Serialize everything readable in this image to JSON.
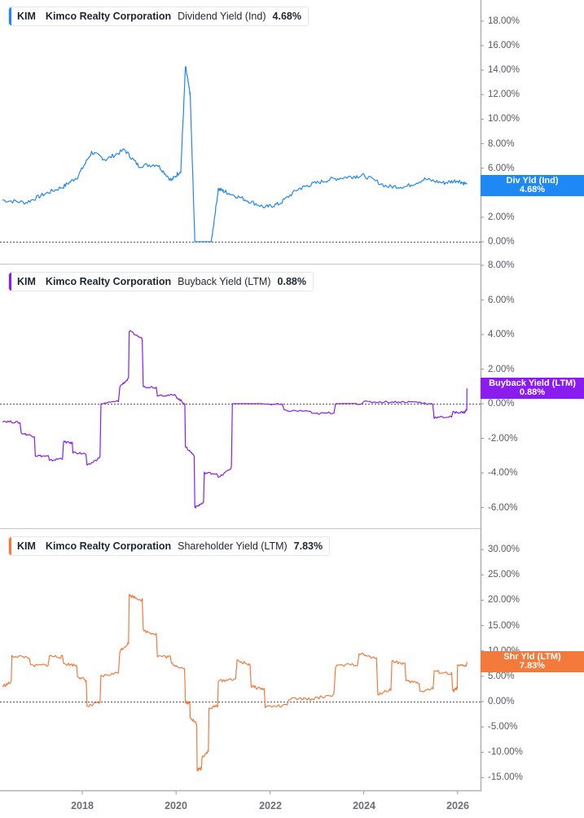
{
  "chart_data": [
    {
      "type": "line",
      "title": "KIM Kimco Realty Corporation Dividend Yield (Ind) 4.68%",
      "legend": {
        "ticker": "KIM",
        "company": "Kimco Realty Corporation",
        "metric": "Dividend Yield (Ind)",
        "value": "4.68%"
      },
      "price_tag": {
        "label": "Div Yld (Ind)",
        "value": "4.68%"
      },
      "color": "#1e88f5",
      "ylabel": "",
      "xlabel": "",
      "ylim": [
        0,
        18
      ],
      "y_ticks": [
        "18.00%",
        "16.00%",
        "14.00%",
        "12.00%",
        "10.00%",
        "8.00%",
        "6.00%",
        "4.00%",
        "2.00%",
        "0.00%"
      ],
      "baseline": "0.00% dotted",
      "x": [
        2016.3,
        2016.8,
        2017.2,
        2017.6,
        2017.9,
        2018.2,
        2018.5,
        2018.9,
        2019.2,
        2019.6,
        2019.9,
        2020.1,
        2020.2,
        2020.3,
        2020.4,
        2020.6,
        2020.75,
        2020.9,
        2021.1,
        2021.5,
        2021.9,
        2022.2,
        2022.6,
        2022.9,
        2023.3,
        2023.7,
        2024.0,
        2024.5,
        2024.9,
        2025.3,
        2025.7,
        2026.0,
        2026.2
      ],
      "values": [
        3.4,
        3.2,
        3.9,
        4.5,
        5.3,
        7.3,
        6.7,
        7.5,
        6.2,
        6.3,
        5.0,
        5.8,
        14.3,
        12.0,
        0.0,
        0.0,
        0.0,
        4.3,
        4.0,
        3.4,
        2.8,
        3.1,
        4.3,
        4.7,
        5.1,
        5.3,
        5.4,
        4.5,
        4.5,
        5.1,
        4.8,
        5.0,
        4.68
      ]
    },
    {
      "type": "line",
      "title": "KIM Kimco Realty Corporation Buyback Yield (LTM) 0.88%",
      "legend": {
        "ticker": "KIM",
        "company": "Kimco Realty Corporation",
        "metric": "Buyback Yield (LTM)",
        "value": "0.88%"
      },
      "price_tag": {
        "label": "Buyback Yield (LTM)",
        "value": "0.88%"
      },
      "color": "#8a1cf0",
      "ylim": [
        -7,
        8
      ],
      "y_ticks": [
        "8.00%",
        "6.00%",
        "4.00%",
        "2.00%",
        "0.00%",
        "-2.00%",
        "-4.00%",
        "-6.00%"
      ],
      "baseline": "0.00% dotted",
      "x": [
        2016.3,
        2016.7,
        2017.0,
        2017.3,
        2017.6,
        2017.8,
        2018.1,
        2018.4,
        2018.8,
        2019.0,
        2019.3,
        2019.6,
        2020.0,
        2020.2,
        2020.4,
        2020.6,
        2020.9,
        2021.2,
        2021.8,
        2022.3,
        2022.9,
        2023.4,
        2024.0,
        2024.6,
        2025.1,
        2025.5,
        2025.9,
        2026.15,
        2026.2
      ],
      "values": [
        -1.0,
        -1.7,
        -3.0,
        -3.3,
        -2.2,
        -2.8,
        -3.6,
        0.0,
        1.0,
        4.2,
        1.0,
        0.5,
        0.4,
        -2.5,
        -6.0,
        -4.0,
        -4.3,
        0.0,
        0.0,
        -0.4,
        -0.6,
        0.0,
        0.1,
        0.1,
        0.1,
        -0.8,
        -0.5,
        -0.5,
        0.88
      ]
    },
    {
      "type": "line",
      "title": "KIM Kimco Realty Corporation Shareholder Yield (LTM) 7.83%",
      "legend": {
        "ticker": "KIM",
        "company": "Kimco Realty Corporation",
        "metric": "Shareholder Yield (LTM)",
        "value": "7.83%"
      },
      "price_tag": {
        "label": "Shr Yld (LTM)",
        "value": "7.83%"
      },
      "color": "#f47a3c",
      "ylim": [
        -17,
        33
      ],
      "y_ticks": [
        "30.00%",
        "25.00%",
        "20.00%",
        "15.00%",
        "10.00%",
        "5.00%",
        "0.00%",
        "-5.00%",
        "-10.00%",
        "-15.00%"
      ],
      "baseline": "0.00% dotted",
      "x": [
        2016.3,
        2016.5,
        2016.9,
        2017.3,
        2017.6,
        2017.9,
        2018.1,
        2018.4,
        2018.8,
        2019.0,
        2019.3,
        2019.6,
        2019.9,
        2020.2,
        2020.3,
        2020.45,
        2020.55,
        2020.7,
        2020.9,
        2021.3,
        2021.6,
        2021.9,
        2022.4,
        2022.9,
        2023.4,
        2023.9,
        2024.3,
        2024.6,
        2024.9,
        2025.2,
        2025.5,
        2025.9,
        2026.0,
        2026.2
      ],
      "values": [
        3.0,
        9.0,
        7.0,
        9.0,
        7.5,
        5.0,
        -1.0,
        5.0,
        10.0,
        21.0,
        14.0,
        9.0,
        7.5,
        0.0,
        -3.0,
        -13.5,
        -11.0,
        -1.5,
        4.0,
        8.0,
        3.0,
        -1.0,
        0.5,
        0.5,
        7.0,
        9.5,
        1.5,
        8.0,
        4.0,
        2.0,
        6.0,
        2.0,
        7.0,
        7.83
      ]
    }
  ],
  "x_axis": {
    "ticks": [
      "2018",
      "2020",
      "2022",
      "2024",
      "2026"
    ]
  }
}
